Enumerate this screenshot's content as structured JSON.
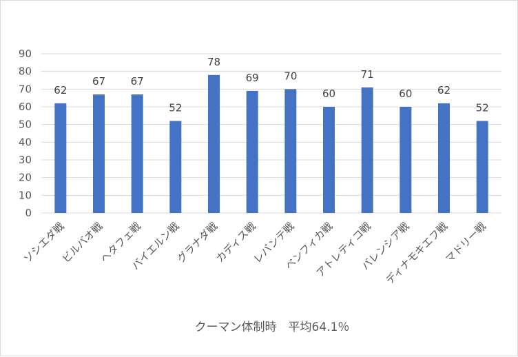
{
  "chart_data": {
    "type": "bar",
    "title": "",
    "xlabel": "クーマン体制時　平均64.1％",
    "ylabel": "",
    "ylim": [
      0,
      90
    ],
    "yticks": [
      0,
      10,
      20,
      30,
      40,
      50,
      60,
      70,
      80,
      90
    ],
    "grid": true,
    "legend": "none",
    "bar_color": "#4472c4",
    "categories": [
      "ソシエダ戦",
      "ビルバオ戦",
      "ヘタフェ戦",
      "バイエルン戦",
      "グラナダ戦",
      "カディス戦",
      "レバンテ戦",
      "ベンフィカ戦",
      "アトレティコ戦",
      "バレンシア戦",
      "ディナモキエフ戦",
      "マドリー戦"
    ],
    "values": [
      62,
      67,
      67,
      52,
      78,
      69,
      70,
      60,
      71,
      60,
      62,
      52
    ]
  }
}
